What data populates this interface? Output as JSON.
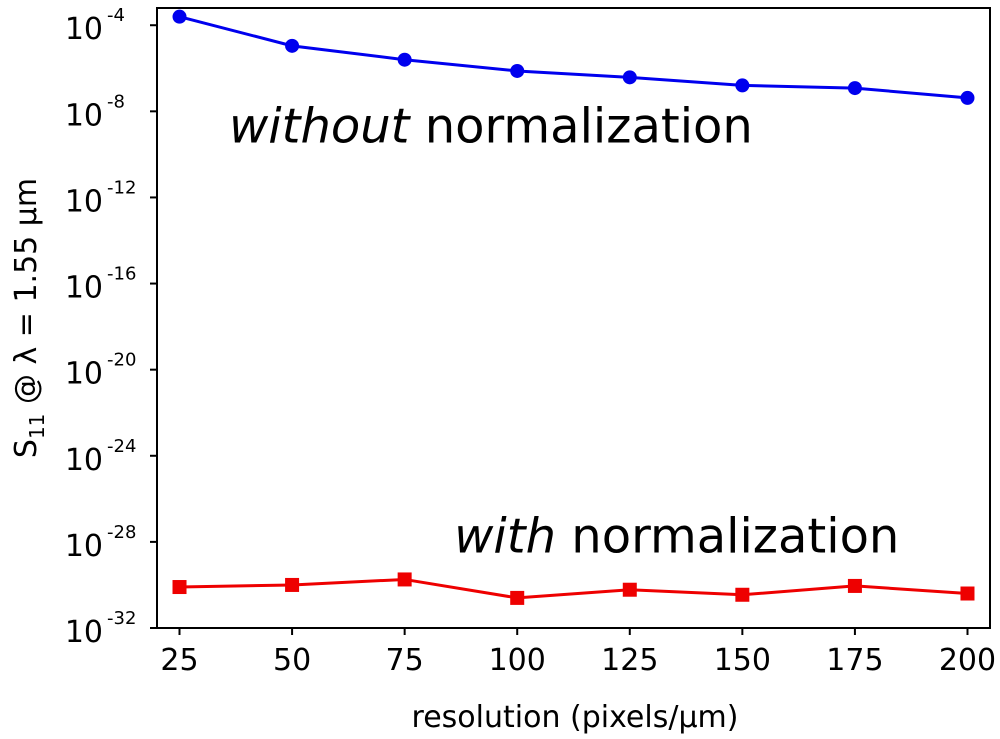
{
  "chart_data": {
    "type": "line",
    "x": [
      25,
      50,
      75,
      100,
      125,
      150,
      175,
      200
    ],
    "xlabel": "resolution (pixels/µm)",
    "ylabel_main": "S",
    "ylabel_sub": "11",
    "ylabel_rest": " @ λ = 1.55 µm",
    "y_scale": "log",
    "xlim": [
      20,
      205
    ],
    "ylim_exp": [
      -32,
      -3.2
    ],
    "xticks": [
      25,
      50,
      75,
      100,
      125,
      150,
      175,
      200
    ],
    "yticks": [
      {
        "base": "10",
        "exp": "-4",
        "exp_value": -4
      },
      {
        "base": "10",
        "exp": "-8",
        "exp_value": -8
      },
      {
        "base": "10",
        "exp": "-12",
        "exp_value": -12
      },
      {
        "base": "10",
        "exp": "-16",
        "exp_value": -16
      },
      {
        "base": "10",
        "exp": "-20",
        "exp_value": -20
      },
      {
        "base": "10",
        "exp": "-24",
        "exp_value": -24
      },
      {
        "base": "10",
        "exp": "-28",
        "exp_value": -28
      },
      {
        "base": "10",
        "exp": "-32",
        "exp_value": -32
      }
    ],
    "grid": false,
    "series": [
      {
        "color": "#0000ee",
        "marker": "circle",
        "values": [
          0.00025,
          1.1e-05,
          2.5e-06,
          7.5e-07,
          3.8e-07,
          1.6e-07,
          1.2e-07,
          4.2e-08
        ]
      },
      {
        "color": "#ee0000",
        "marker": "square",
        "values": [
          8e-31,
          1e-30,
          1.8e-30,
          2.5e-31,
          6e-31,
          3.5e-31,
          9e-31,
          4e-31
        ]
      }
    ],
    "annotations": [
      {
        "italic": "without",
        "rest": " normalization",
        "x": 36,
        "y": 2e-09
      },
      {
        "italic": "with",
        "rest": " normalization",
        "x": 86,
        "y": 1.8e-28
      }
    ]
  }
}
